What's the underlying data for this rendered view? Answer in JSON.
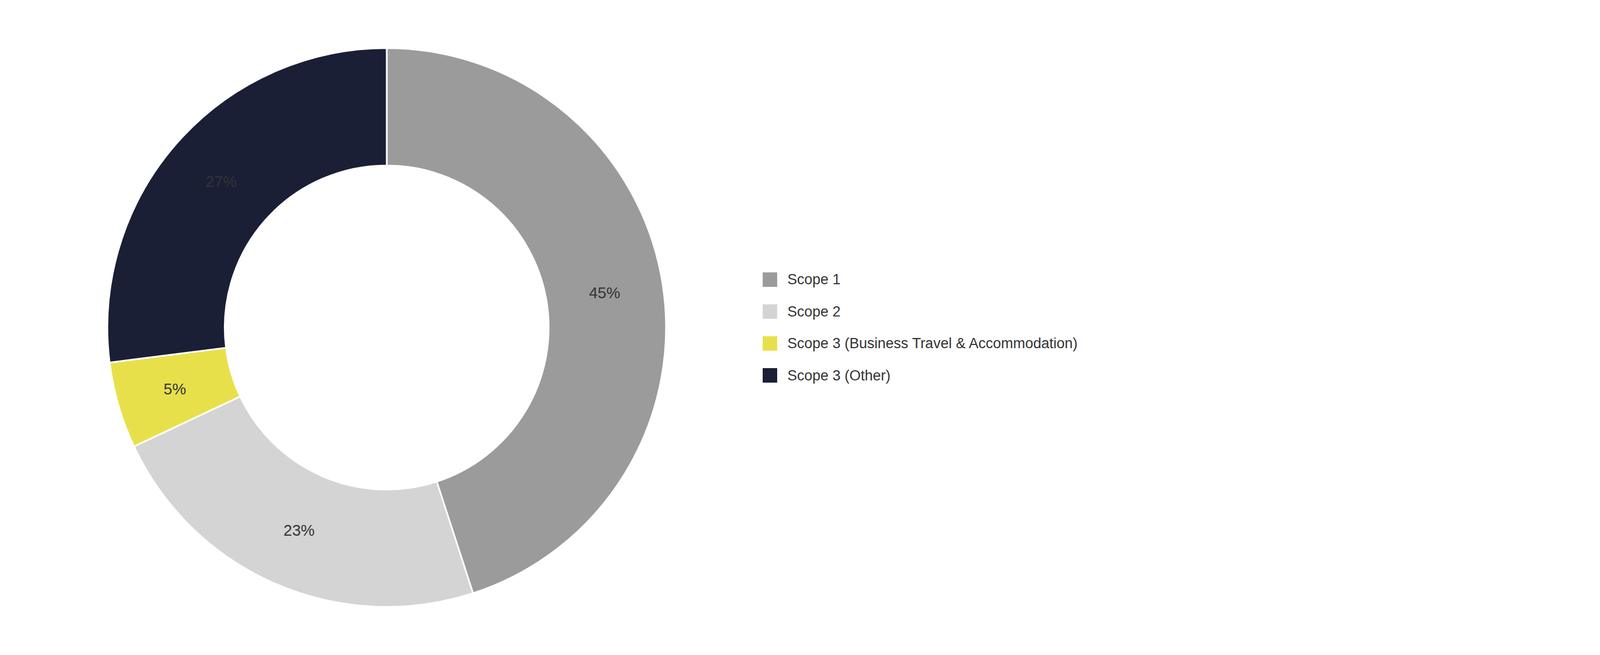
{
  "chart_data": {
    "type": "donut",
    "categories": [
      "Scope 1",
      "Scope 2",
      "Scope 3 (Business Travel & Accommodation)",
      "Scope 3 (Other)"
    ],
    "values": [
      45,
      23,
      5,
      27
    ],
    "value_labels": [
      "45%",
      "23%",
      "5%",
      "27%"
    ],
    "colors": [
      "#9b9b9b",
      "#d4d4d4",
      "#e8e04a",
      "#1a1f36"
    ],
    "data_labels": true,
    "legend": "right"
  }
}
